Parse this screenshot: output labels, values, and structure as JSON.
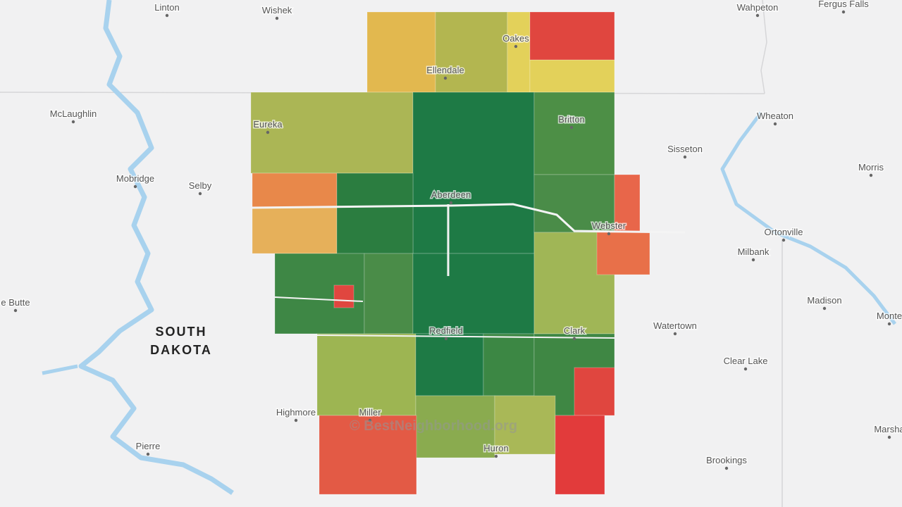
{
  "places": [
    "Linton",
    "Wishek",
    "Wahpeton",
    "Fergus Falls",
    "Oakes",
    "Ellendale",
    "McLaughlin",
    "Eureka",
    "Britton",
    "Wheaton",
    "Sisseton",
    "Morris",
    "Mobridge",
    "Selby",
    "Aberdeen",
    "Webster",
    "Ortonville",
    "Milbank",
    "e Butte",
    "Madison",
    "Monte",
    "Watertown",
    "Clark",
    "Redfield",
    "Clear Lake",
    "Highmore",
    "Miller",
    "Marsha",
    "Pierre",
    "Huron",
    "Brookings"
  ],
  "state_label": [
    "SOUTH",
    "DAKOTA"
  ],
  "watermark": "© BestNeighborhood.org"
}
